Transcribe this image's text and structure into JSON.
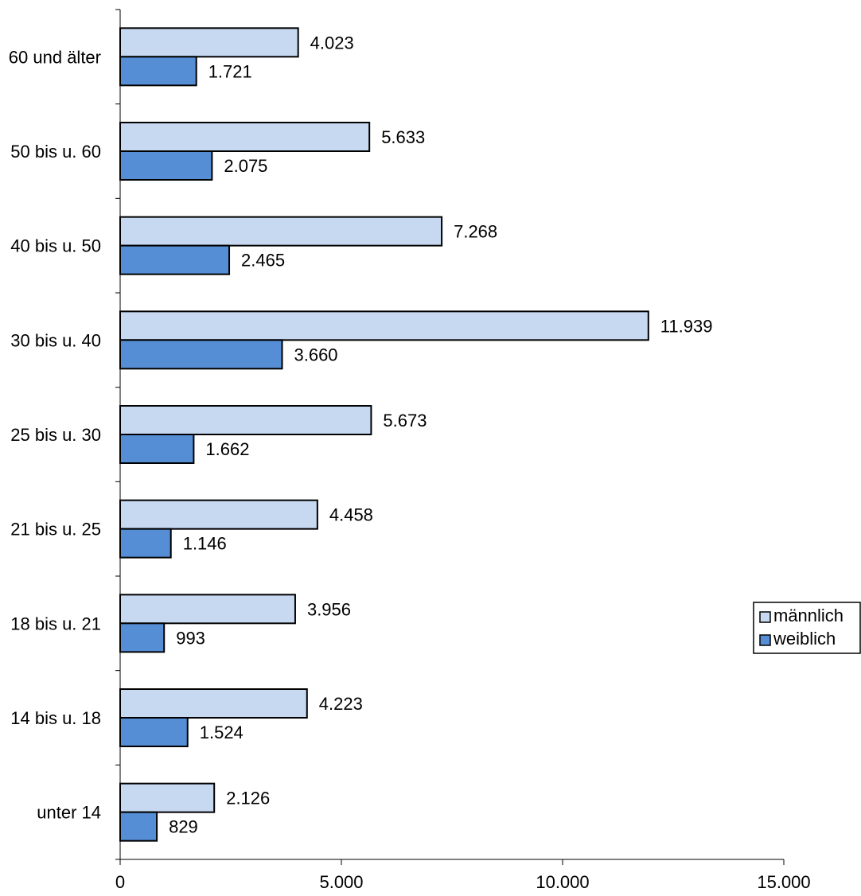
{
  "chart_data": {
    "type": "bar",
    "orientation": "horizontal",
    "categories": [
      "60 und älter",
      "50 bis u. 60",
      "40 bis u. 50",
      "30 bis u. 40",
      "25 bis u. 30",
      "21 bis u. 25",
      "18 bis u. 21",
      "14 bis u. 18",
      "unter 14"
    ],
    "series": [
      {
        "name": "männlich",
        "color": "#c6d9f1",
        "values": [
          4023,
          5633,
          7268,
          11939,
          5673,
          4458,
          3956,
          4223,
          2126
        ]
      },
      {
        "name": "weiblich",
        "color": "#558ed5",
        "values": [
          1721,
          2075,
          2465,
          3660,
          1662,
          1146,
          993,
          1524,
          829
        ]
      }
    ],
    "value_labels": {
      "männlich": [
        "4.023",
        "5.633",
        "7.268",
        "11.939",
        "5.673",
        "4.458",
        "3.956",
        "4.223",
        "2.126"
      ],
      "weiblich": [
        "1.721",
        "2.075",
        "2.465",
        "3.660",
        "1.662",
        "1.146",
        "993",
        "1.524",
        "829"
      ]
    },
    "x_ticks": [
      0,
      5000,
      10000,
      15000
    ],
    "x_tick_labels": [
      "0",
      "5.000",
      "10.000",
      "15.000"
    ],
    "xlim": [
      0,
      15000
    ],
    "grid": false,
    "legend_position": "right",
    "title": "",
    "xlabel": "",
    "ylabel": ""
  }
}
